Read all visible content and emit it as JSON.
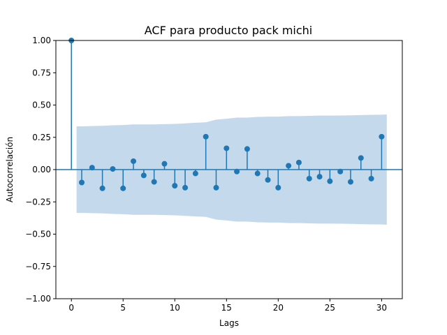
{
  "chart_data": {
    "type": "scatter",
    "title": "ACF para producto pack michi",
    "xlabel": "Lags",
    "ylabel": "Autocorrelación",
    "xlim": [
      -1.5,
      32
    ],
    "ylim": [
      -1.0,
      1.0
    ],
    "grid": false,
    "x_ticks": [
      0,
      5,
      10,
      15,
      20,
      25,
      30
    ],
    "y_ticks": [
      -1.0,
      -0.75,
      -0.5,
      -0.25,
      0.0,
      0.25,
      0.5,
      0.75,
      1.0
    ],
    "x_tick_labels": [
      "0",
      "5",
      "10",
      "15",
      "20",
      "25",
      "30"
    ],
    "y_tick_labels": [
      "−1.00",
      "−0.75",
      "−0.50",
      "−0.25",
      "0.00",
      "0.25",
      "0.50",
      "0.75",
      "1.00"
    ],
    "lags": [
      0,
      1,
      2,
      3,
      4,
      5,
      6,
      7,
      8,
      9,
      10,
      11,
      12,
      13,
      14,
      15,
      16,
      17,
      18,
      19,
      20,
      21,
      22,
      23,
      24,
      25,
      26,
      27,
      28,
      29,
      30
    ],
    "values": [
      1.0,
      -0.1,
      0.015,
      -0.145,
      0.005,
      -0.145,
      0.065,
      -0.045,
      -0.095,
      0.045,
      -0.125,
      -0.14,
      -0.03,
      0.255,
      -0.14,
      0.165,
      -0.015,
      0.16,
      -0.03,
      -0.08,
      -0.14,
      0.03,
      0.055,
      -0.07,
      -0.055,
      -0.09,
      -0.015,
      -0.095,
      0.09,
      -0.07,
      0.255
    ],
    "confidence_band": {
      "lags": [
        0.5,
        1,
        2,
        3,
        4,
        5,
        6,
        7,
        8,
        9,
        10,
        11,
        12,
        13,
        14,
        15,
        16,
        17,
        18,
        19,
        20,
        21,
        22,
        23,
        24,
        25,
        26,
        27,
        28,
        29,
        30,
        30.5
      ],
      "upper": [
        0.335,
        0.335,
        0.337,
        0.339,
        0.343,
        0.345,
        0.35,
        0.35,
        0.35,
        0.352,
        0.354,
        0.358,
        0.363,
        0.366,
        0.387,
        0.394,
        0.403,
        0.403,
        0.408,
        0.41,
        0.41,
        0.414,
        0.414,
        0.416,
        0.418,
        0.418,
        0.419,
        0.42,
        0.422,
        0.424,
        0.425,
        0.427
      ]
    },
    "colors": {
      "series": "#1f77b4",
      "band": "#c5d9ec",
      "axis": "#000000"
    }
  }
}
